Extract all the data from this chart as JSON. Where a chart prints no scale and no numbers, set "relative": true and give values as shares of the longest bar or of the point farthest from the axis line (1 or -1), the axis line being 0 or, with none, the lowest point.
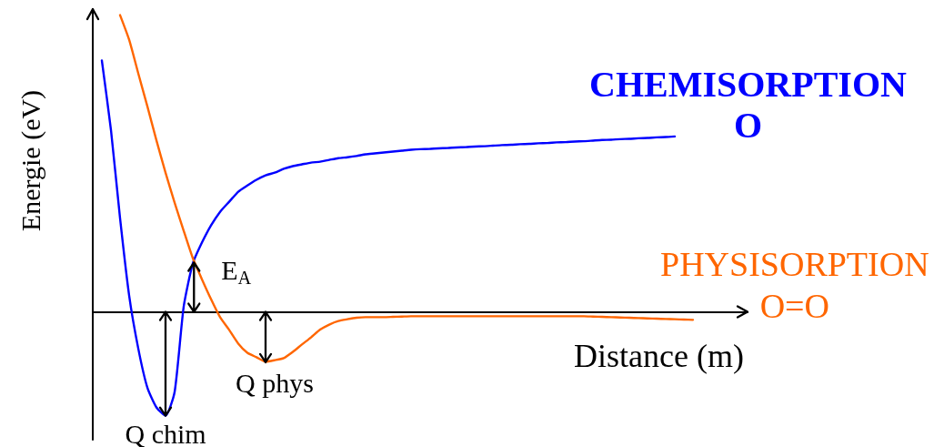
{
  "chart_data": {
    "type": "line",
    "relative": true,
    "marker": "none",
    "line_style": "solid",
    "xlabel": "Distance (m)",
    "ylabel": "Energie (eV)",
    "categories": [
      null,
      null,
      null,
      null,
      null,
      null,
      null,
      null,
      null,
      null,
      null,
      null,
      null,
      null,
      null,
      null,
      null,
      null,
      null,
      null,
      null,
      null,
      null,
      null,
      null,
      null,
      null,
      null,
      null,
      null,
      null,
      null,
      null,
      null,
      null,
      null,
      null,
      null,
      null,
      null,
      null,
      null,
      null,
      null,
      null,
      null,
      null,
      null,
      null,
      null,
      null,
      null,
      null,
      null,
      null,
      null,
      null,
      null,
      null,
      null,
      null,
      null,
      null,
      null,
      null,
      null,
      null,
      null,
      null,
      null,
      null,
      null,
      null
    ],
    "series": [
      {
        "name": "CHEMISORPTION O",
        "color": "#0000ff",
        "values": [
          null,
          0.847,
          0.613,
          0.316,
          0.055,
          -0.123,
          -0.255,
          -0.322,
          -0.35,
          -0.27,
          0.018,
          0.163,
          0.233,
          0.291,
          0.337,
          0.371,
          0.405,
          0.426,
          0.445,
          0.46,
          0.469,
          0.482,
          0.491,
          0.497,
          0.503,
          0.506,
          0.512,
          0.518,
          0.521,
          0.525,
          0.531,
          0.534,
          0.537,
          0.54,
          0.543,
          0.546,
          0.548,
          0.549,
          0.551,
          0.552,
          0.554,
          0.555,
          0.557,
          0.558,
          0.56,
          0.562,
          0.563,
          0.565,
          0.566,
          0.568,
          0.569,
          0.571,
          0.572,
          0.574,
          0.575,
          0.577,
          0.579,
          0.58,
          0.582,
          0.583,
          0.585,
          0.586,
          0.588,
          0.589,
          0.591,
          null,
          null,
          null,
          null,
          null,
          null,
          null,
          null
        ]
      },
      {
        "name": "PHYSISORPTION O=O",
        "color": "#ff6600",
        "values": [
          null,
          null,
          null,
          1.0,
          0.917,
          0.804,
          0.693,
          0.578,
          0.469,
          0.368,
          0.273,
          0.181,
          0.11,
          0.043,
          -0.018,
          -0.061,
          -0.107,
          -0.138,
          -0.153,
          -0.168,
          -0.163,
          -0.156,
          -0.135,
          -0.11,
          -0.086,
          -0.06,
          -0.043,
          -0.031,
          -0.025,
          -0.02,
          -0.018,
          -0.018,
          -0.018,
          -0.017,
          -0.016,
          -0.015,
          -0.015,
          -0.015,
          -0.015,
          -0.015,
          -0.015,
          -0.015,
          -0.015,
          -0.015,
          -0.015,
          -0.015,
          -0.015,
          -0.015,
          -0.015,
          -0.015,
          -0.015,
          -0.015,
          -0.015,
          -0.015,
          -0.015,
          -0.016,
          -0.017,
          -0.018,
          -0.019,
          -0.02,
          -0.021,
          -0.022,
          -0.023,
          -0.024,
          -0.025,
          -0.026,
          -0.027,
          null,
          null,
          null,
          null,
          null,
          null
        ]
      }
    ],
    "annotations": [
      "E$_{A}$",
      {
        "text": "Q phys",
        "y": -0.17
      },
      {
        "text": "Q chim",
        "y": -0.35
      }
    ]
  }
}
